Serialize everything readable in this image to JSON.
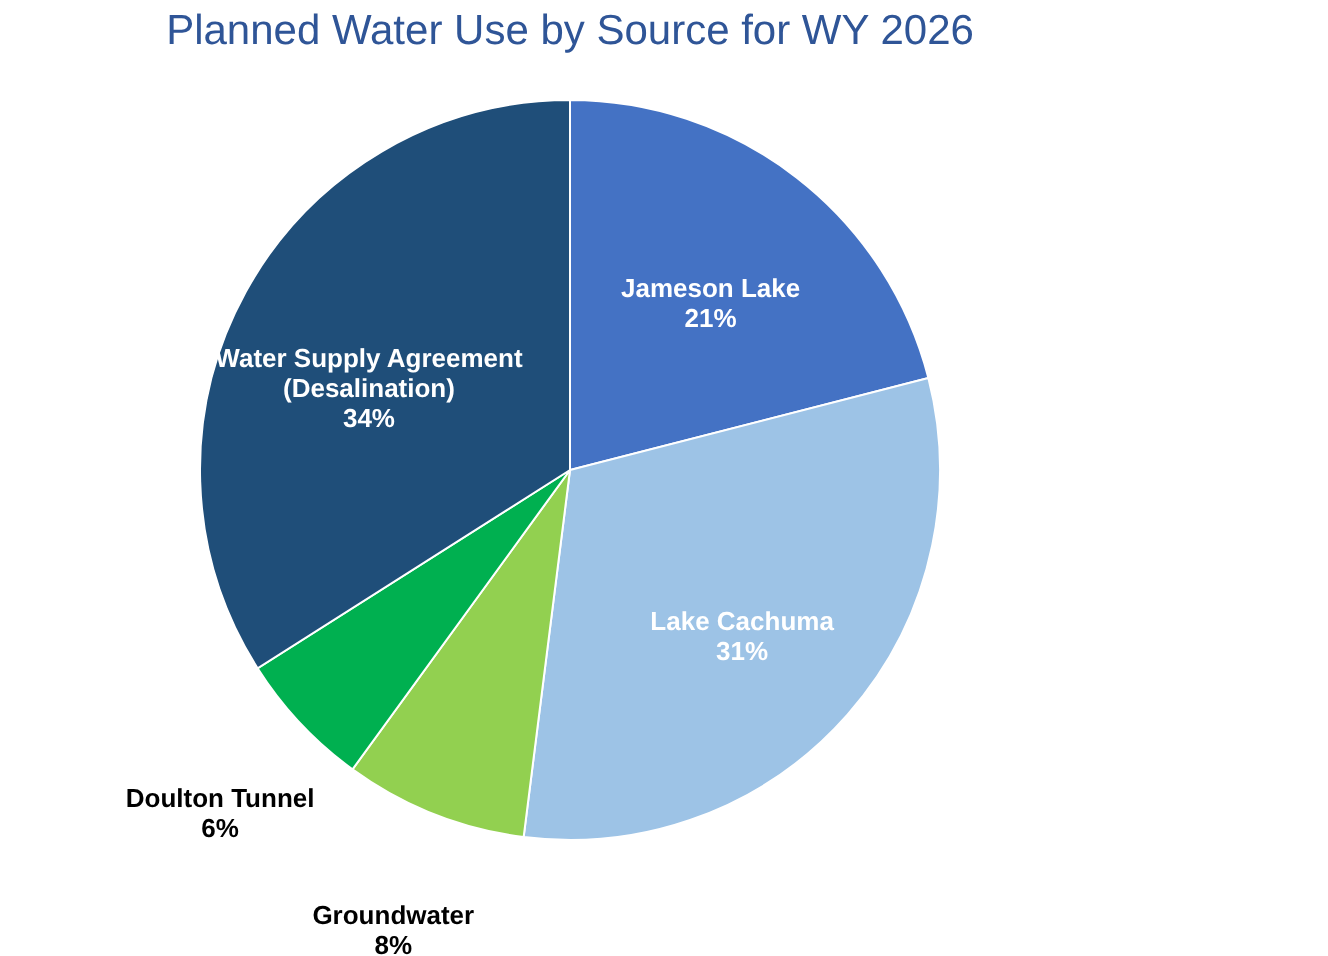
{
  "chart_data": {
    "type": "pie",
    "title": "Planned Water Use by Source for WY 2026",
    "categories": [
      "Jameson Lake",
      "Lake Cachuma",
      "Groundwater",
      "Doulton Tunnel",
      "Water Supply Agreement\n(Desalination)"
    ],
    "values": [
      21,
      31,
      8,
      6,
      34
    ],
    "value_labels": [
      "21%",
      "31%",
      "8%",
      "6%",
      "34%"
    ],
    "colors": [
      "#4472c4",
      "#9dc3e6",
      "#92d050",
      "#00b050",
      "#1f4e79"
    ],
    "legend": false
  }
}
